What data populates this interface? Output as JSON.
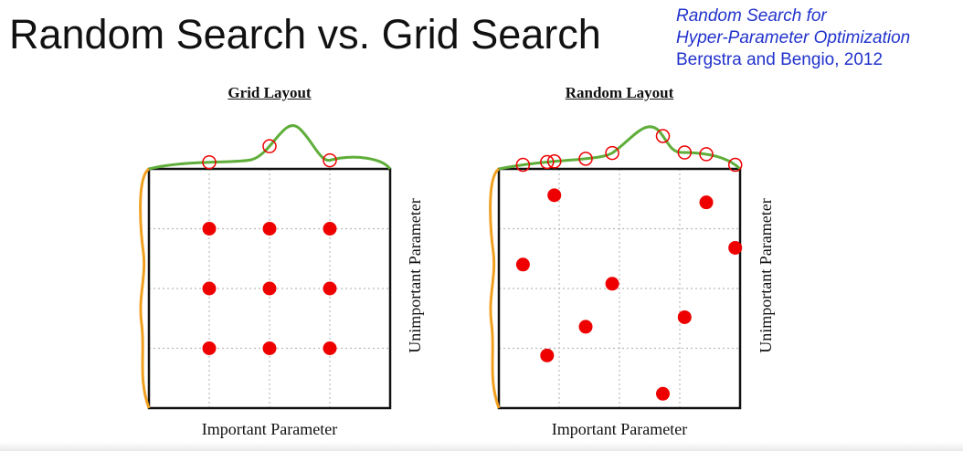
{
  "slide": {
    "title": "Random Search vs. Grid Search",
    "citation_line1": "Random Search for",
    "citation_line2": "Hyper-Parameter Optimization",
    "citation_line3": "Bergstra and Bengio, 2012"
  },
  "colors": {
    "points": "#ee0000",
    "important_curve": "#5fae3a",
    "unimportant_curve": "#f0a020",
    "gridlines": "#bbbbbb",
    "citation": "#2233cc"
  },
  "panels": [
    {
      "id": "grid",
      "title": "Grid Layout",
      "xlabel": "Important Parameter",
      "ylabel": "Unimportant Parameter",
      "points": [
        {
          "x": 0.25,
          "y": 0.75
        },
        {
          "x": 0.5,
          "y": 0.75
        },
        {
          "x": 0.75,
          "y": 0.75
        },
        {
          "x": 0.25,
          "y": 0.5
        },
        {
          "x": 0.5,
          "y": 0.5
        },
        {
          "x": 0.75,
          "y": 0.5
        },
        {
          "x": 0.25,
          "y": 0.25
        },
        {
          "x": 0.5,
          "y": 0.25
        },
        {
          "x": 0.75,
          "y": 0.25
        }
      ]
    },
    {
      "id": "random",
      "title": "Random Layout",
      "xlabel": "Important Parameter",
      "ylabel": "Unimportant Parameter",
      "points": [
        {
          "x": 0.23,
          "y": 0.89
        },
        {
          "x": 0.86,
          "y": 0.86
        },
        {
          "x": 0.98,
          "y": 0.67
        },
        {
          "x": 0.1,
          "y": 0.6
        },
        {
          "x": 0.47,
          "y": 0.52
        },
        {
          "x": 0.77,
          "y": 0.38
        },
        {
          "x": 0.36,
          "y": 0.34
        },
        {
          "x": 0.2,
          "y": 0.22
        },
        {
          "x": 0.68,
          "y": 0.06
        }
      ]
    }
  ]
}
